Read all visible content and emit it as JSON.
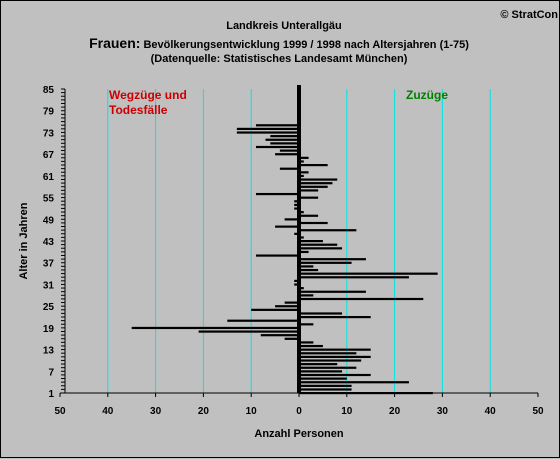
{
  "chart_data": {
    "type": "bar",
    "orientation": "horizontal",
    "copyright": "© StratCon",
    "title_line1": "Landkreis Unterallgäu",
    "title_prefix": "Frauen:",
    "title_rest": " Bevölkerungsentwicklung 1999 / 1998  nach Altersjahren (1-75)",
    "subtitle": "(Datenquelle: Statistisches Landesamt München)",
    "xlabel": "Anzahl Personen",
    "ylabel": "Alter in Jahren",
    "xlim": [
      -50,
      50
    ],
    "ylim": [
      1,
      85
    ],
    "x_tick_labels": [
      "50",
      "40",
      "30",
      "20",
      "10",
      "0",
      "10",
      "20",
      "30",
      "40",
      "50"
    ],
    "y_tick_labels": [
      "1",
      "7",
      "13",
      "19",
      "25",
      "31",
      "37",
      "43",
      "49",
      "55",
      "61",
      "67",
      "73",
      "79",
      "85"
    ],
    "grid": true,
    "annotations": [
      {
        "text": "Wegzüge und",
        "color": "#cc0000"
      },
      {
        "text": "Todesfälle",
        "color": "#cc0000"
      },
      {
        "text": "Zuzüge",
        "color": "#008000"
      }
    ],
    "colors": {
      "background": "#c0c0c0",
      "bars": "#000000",
      "grid": "#00e5e5"
    },
    "series": [
      {
        "name": "",
        "ages": [
          1,
          2,
          3,
          4,
          5,
          6,
          7,
          8,
          9,
          10,
          11,
          12,
          13,
          14,
          15,
          16,
          17,
          18,
          19,
          20,
          21,
          22,
          23,
          24,
          25,
          26,
          27,
          28,
          29,
          30,
          31,
          32,
          33,
          34,
          35,
          36,
          37,
          38,
          39,
          40,
          41,
          42,
          43,
          44,
          45,
          46,
          47,
          48,
          49,
          50,
          51,
          52,
          53,
          54,
          55,
          56,
          57,
          58,
          59,
          60,
          61,
          62,
          63,
          64,
          65,
          66,
          67,
          68,
          69,
          70,
          71,
          72,
          73,
          74,
          75
        ],
        "values": [
          28,
          11,
          11,
          23,
          10,
          15,
          9,
          12,
          8,
          13,
          15,
          12,
          15,
          5,
          3,
          -3,
          -8,
          -21,
          -35,
          3,
          -15,
          15,
          9,
          -10,
          -5,
          -3,
          26,
          3,
          14,
          1,
          -1,
          -1,
          23,
          29,
          4,
          3,
          11,
          14,
          -9,
          2,
          9,
          8,
          5,
          1,
          -1,
          12,
          -5,
          6,
          -3,
          4,
          1,
          -1,
          -1,
          -1,
          4,
          -9,
          4,
          6,
          7,
          8,
          1,
          2,
          -4,
          6,
          1,
          2,
          -5,
          -4,
          -9,
          -6,
          -7,
          -6,
          -13,
          -13,
          -9
        ]
      }
    ]
  }
}
